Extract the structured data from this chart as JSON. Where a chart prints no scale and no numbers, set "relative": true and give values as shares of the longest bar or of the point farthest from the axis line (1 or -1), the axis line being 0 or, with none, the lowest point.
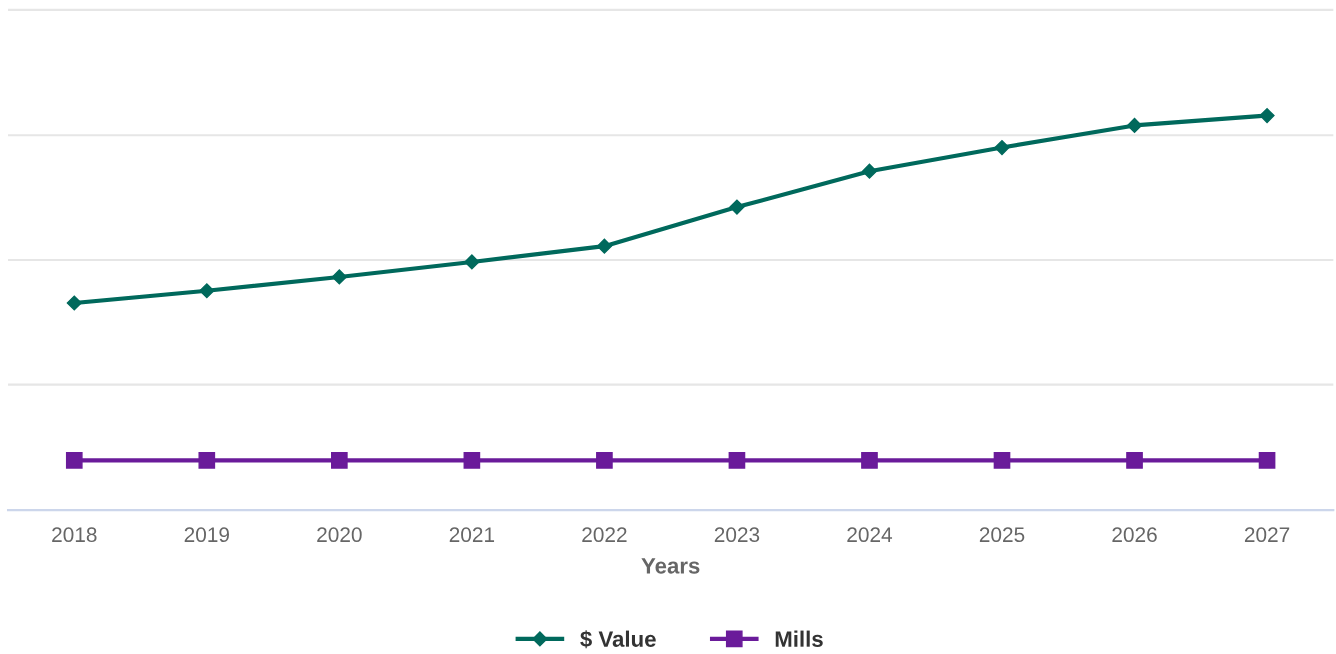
{
  "chart_data": {
    "type": "line",
    "relative": true,
    "xlabel": "Years",
    "categories": [
      "2018",
      "2019",
      "2020",
      "2021",
      "2022",
      "2023",
      "2024",
      "2025",
      "2026",
      "2027"
    ],
    "series": [
      {
        "name": "$ Value",
        "color": "#00695c",
        "marker": "diamond",
        "values": [
          0.525,
          0.556,
          0.591,
          0.629,
          0.669,
          0.768,
          0.859,
          0.919,
          0.975,
          1
        ]
      },
      {
        "name": "Mills",
        "color": "#6a1b9a",
        "marker": "square",
        "values": [
          0.126,
          0.126,
          0.126,
          0.126,
          0.126,
          0.126,
          0.126,
          0.126,
          0.126,
          0.126
        ]
      }
    ],
    "ref_lines": [
      {
        "axis": "y",
        "value": 0.318,
        "color": "#e6e6e6"
      },
      {
        "axis": "y",
        "value": 0.634,
        "color": "#e6e6e6"
      },
      {
        "axis": "y",
        "value": 0.95,
        "color": "#e6e6e6"
      },
      {
        "axis": "y",
        "value": 1.268,
        "color": "#e6e6e6"
      }
    ],
    "legend": "bottom",
    "line_style": "solid"
  }
}
